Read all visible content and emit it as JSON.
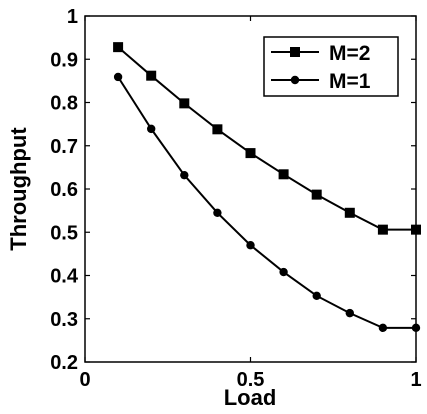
{
  "chart_data": {
    "type": "line",
    "title": "",
    "xlabel": "Load",
    "ylabel": "Throughput",
    "xlim": [
      0,
      1
    ],
    "ylim": [
      0.2,
      1
    ],
    "xticks": [
      0,
      0.5,
      1
    ],
    "xtick_labels": [
      "0",
      "0.5",
      "1"
    ],
    "yticks": [
      0.2,
      0.3,
      0.4,
      0.5,
      0.6,
      0.7,
      0.8,
      0.9,
      1
    ],
    "ytick_labels": [
      "0.2",
      "0.3",
      "0.4",
      "0.5",
      "0.6",
      "0.7",
      "0.8",
      "0.9",
      "1"
    ],
    "grid": false,
    "legend_position": "top-right",
    "x": [
      0.1,
      0.2,
      0.3,
      0.4,
      0.5,
      0.6,
      0.7,
      0.8,
      0.9,
      1.0
    ],
    "series": [
      {
        "name": "M=2",
        "marker": "square",
        "color": "#000000",
        "values": [
          0.928,
          0.862,
          0.798,
          0.738,
          0.683,
          0.634,
          0.587,
          0.545,
          0.506,
          0.506
        ]
      },
      {
        "name": "M=1",
        "marker": "circle",
        "color": "#000000",
        "values": [
          0.859,
          0.739,
          0.632,
          0.545,
          0.47,
          0.408,
          0.353,
          0.313,
          0.279,
          0.279
        ]
      }
    ]
  }
}
